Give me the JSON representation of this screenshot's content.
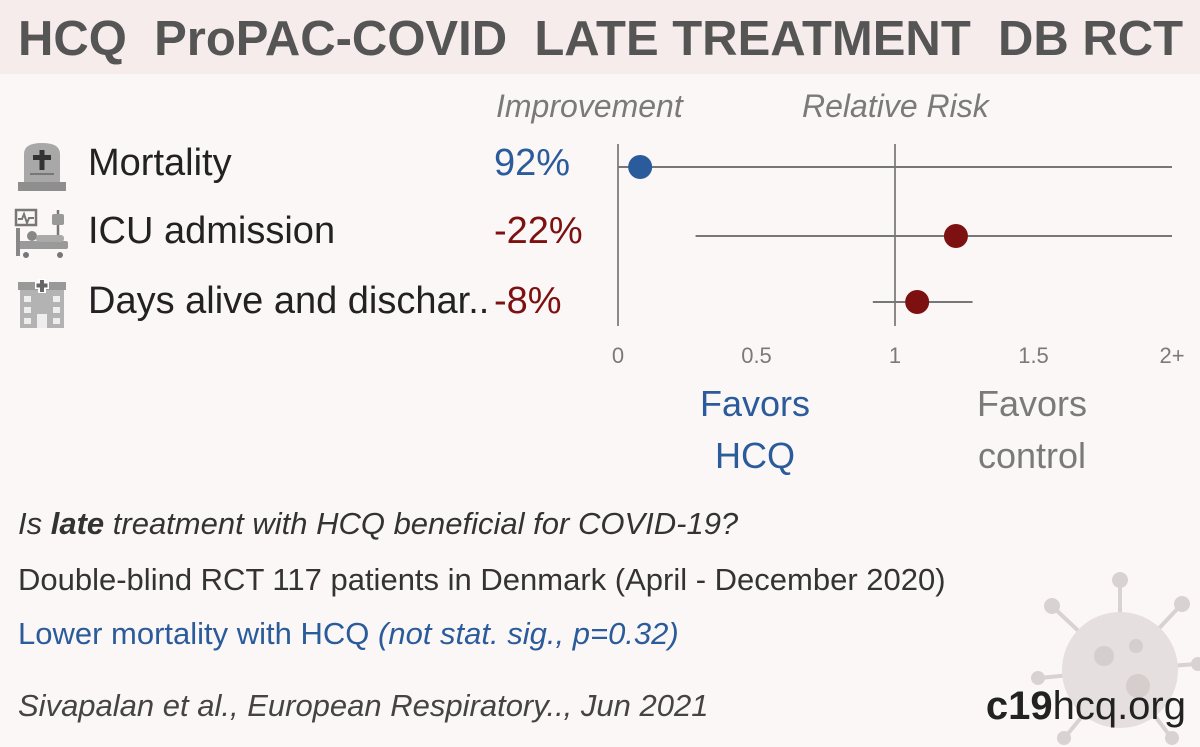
{
  "header": {
    "title": "HCQ  ProPAC-COVID  LATE TREATMENT  DB RCT"
  },
  "columns": {
    "improvement": "Improvement",
    "relative_risk": "Relative Risk"
  },
  "outcomes": [
    {
      "icon": "gravestone-icon",
      "label": "Mortality",
      "improvement": "92%",
      "color": "#2a5b9a"
    },
    {
      "icon": "icu-bed-icon",
      "label": "ICU admission",
      "improvement": "-22%",
      "color": "#7d1010"
    },
    {
      "icon": "hospital-icon",
      "label": "Days alive and dischar..",
      "improvement": "-8%",
      "color": "#7d1010"
    }
  ],
  "chart_data": {
    "type": "scatter",
    "xlabel": "Relative Risk",
    "x_ticks": [
      "0",
      "0.5",
      "1",
      "1.5",
      "2+"
    ],
    "xlim": [
      0,
      2
    ],
    "reference_line": 1,
    "series": [
      {
        "name": "Mortality",
        "rr": 0.08,
        "ci_low": 0.0,
        "ci_high": 2.0,
        "color": "#2a5b9a"
      },
      {
        "name": "ICU admission",
        "rr": 1.22,
        "ci_low": 0.28,
        "ci_high": 2.0,
        "color": "#7d1010"
      },
      {
        "name": "Days alive and dischar..",
        "rr": 1.08,
        "ci_low": 0.92,
        "ci_high": 1.28,
        "color": "#7d1010"
      }
    ]
  },
  "favors": {
    "hcq": [
      "Favors",
      "HCQ"
    ],
    "control": [
      "Favors",
      "control"
    ]
  },
  "footer": {
    "question_pre": "Is ",
    "question_bold": "late",
    "question_post": " treatment with HCQ beneficial for COVID-19?",
    "design": "Double-blind RCT 117 patients in Denmark (April - December 2020)",
    "result_main": "Lower mortality with HCQ ",
    "result_detail": "(not stat. sig., p=0.32)",
    "citation": "Sivapalan et al., European Respiratory.., Jun 2021",
    "brand_bold": "c19",
    "brand_rest": "hcq.org"
  },
  "colors": {
    "positive": "#2a5b9a",
    "negative": "#7d1010",
    "title_bg": "#f6ecec",
    "background": "#fcf7f7"
  }
}
